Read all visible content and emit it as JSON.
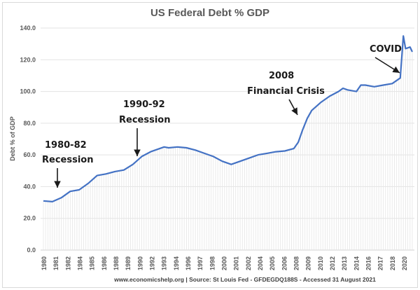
{
  "chart_data": {
    "type": "line",
    "title": "US Federal Debt % GDP",
    "ylabel": "Debt % of GDP",
    "xlabel": "",
    "ylim": [
      0,
      140
    ],
    "yticks": [
      "0.0",
      "20.0",
      "40.0",
      "60.0",
      "80.0",
      "100.0",
      "120.0",
      "140.0"
    ],
    "xtick_labels": [
      "1980",
      "1981",
      "1982",
      "1984",
      "1985",
      "1986",
      "1988",
      "1989",
      "1990",
      "1992",
      "1993",
      "1994",
      "1996",
      "1997",
      "1998",
      "2000",
      "2001",
      "2002",
      "2004",
      "2005",
      "2006",
      "2008",
      "2009",
      "2010",
      "2012",
      "2013",
      "2014",
      "2016",
      "2017",
      "2018",
      "2020"
    ],
    "grid": "horizontal",
    "line_color": "#4472c4",
    "series": [
      {
        "x": [
          1980,
          1981,
          1982,
          1983,
          1984,
          1985,
          1986,
          1987,
          1988,
          1989,
          1990,
          1991,
          1992,
          1993,
          1993.5,
          1994,
          1995,
          1996,
          1997,
          1998,
          1999,
          2000,
          2001,
          2002,
          2003,
          2004,
          2005,
          2006,
          2007,
          2008,
          2008.5,
          2009,
          2009.5,
          2010,
          2011,
          2012,
          2013,
          2013.5,
          2014,
          2015,
          2015.5,
          2016,
          2017,
          2018,
          2019,
          2019.9,
          2020.25,
          2020.5,
          2021,
          2021.25
        ],
        "y": [
          31,
          30.5,
          33,
          37,
          38,
          42,
          47,
          48,
          49.5,
          50.5,
          54,
          59,
          62,
          64,
          65,
          64.5,
          65,
          64.5,
          63,
          61,
          59,
          56,
          54,
          56,
          58,
          60,
          61,
          62,
          62.5,
          64,
          68,
          76,
          83,
          88,
          93,
          97,
          100,
          102,
          101,
          100,
          104,
          104,
          103,
          104,
          105,
          108.5,
          135,
          127,
          128,
          125
        ]
      }
    ],
    "annotations": [
      {
        "lines": [
          "1980-82",
          "Recession"
        ]
      },
      {
        "lines": [
          "1990-92",
          "Recession"
        ]
      },
      {
        "lines": [
          "2008",
          "Financial Crisis"
        ]
      },
      {
        "lines": [
          "COVID"
        ]
      }
    ],
    "source": "www.economicshelp.org | Source: St Louis Fed - GFDEGDQ188S - Accessed 31 August 2021"
  }
}
